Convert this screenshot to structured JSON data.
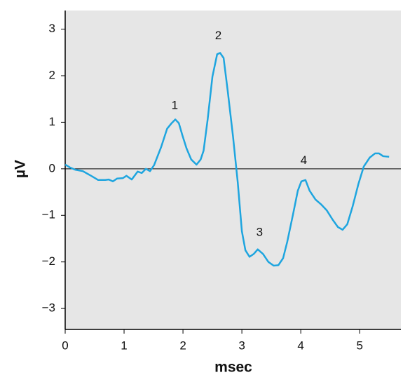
{
  "chart_data": {
    "type": "line",
    "xlabel": "msec",
    "ylabel": "µV",
    "xlim": [
      0,
      5.7
    ],
    "ylim": [
      -3.45,
      3.4
    ],
    "xticks": [
      0,
      1,
      2,
      3,
      4,
      5
    ],
    "yticks": [
      3,
      2,
      1,
      0,
      {
        "value": -1,
        "label": "−1"
      },
      {
        "value": -2,
        "label": "−2"
      },
      {
        "value": -3,
        "label": "−3"
      }
    ],
    "zero_line": true,
    "background": "#e6e6e6",
    "series": [
      {
        "color": "#1ea5df",
        "x": [
          0,
          0.08,
          0.17,
          0.3,
          0.44,
          0.56,
          0.68,
          0.74,
          0.81,
          0.88,
          0.98,
          1.04,
          1.13,
          1.23,
          1.3,
          1.37,
          1.44,
          1.51,
          1.63,
          1.73,
          1.8,
          1.87,
          1.93,
          1.99,
          2.06,
          2.14,
          2.23,
          2.3,
          2.35,
          2.42,
          2.5,
          2.58,
          2.63,
          2.69,
          2.76,
          2.85,
          2.93,
          3.0,
          3.06,
          3.13,
          3.2,
          3.27,
          3.36,
          3.45,
          3.54,
          3.62,
          3.7,
          3.77,
          3.87,
          3.95,
          4.01,
          4.08,
          4.15,
          4.25,
          4.35,
          4.44,
          4.54,
          4.63,
          4.71,
          4.79,
          4.88,
          4.98,
          5.07,
          5.17,
          5.26,
          5.33,
          5.4,
          5.5
        ],
        "values": [
          0.09,
          0.03,
          -0.02,
          -0.05,
          -0.15,
          -0.24,
          -0.24,
          -0.23,
          -0.27,
          -0.21,
          -0.2,
          -0.15,
          -0.23,
          -0.06,
          -0.09,
          0,
          -0.05,
          0.08,
          0.47,
          0.86,
          0.97,
          1.06,
          0.98,
          0.72,
          0.44,
          0.2,
          0.09,
          0.2,
          0.39,
          1.07,
          1.98,
          2.46,
          2.49,
          2.38,
          1.67,
          0.69,
          -0.29,
          -1.34,
          -1.75,
          -1.89,
          -1.83,
          -1.73,
          -1.83,
          -2.0,
          -2.08,
          -2.07,
          -1.92,
          -1.57,
          -0.97,
          -0.47,
          -0.27,
          -0.24,
          -0.47,
          -0.66,
          -0.77,
          -0.89,
          -1.09,
          -1.25,
          -1.31,
          -1.19,
          -0.81,
          -0.32,
          0.05,
          0.24,
          0.33,
          0.33,
          0.27,
          0.26
        ]
      }
    ],
    "annotations": [
      {
        "text": "1",
        "x": 1.86,
        "y": 1.35
      },
      {
        "text": "2",
        "x": 2.6,
        "y": 2.85
      },
      {
        "text": "3",
        "x": 3.3,
        "y": -1.37
      },
      {
        "text": "4",
        "x": 4.05,
        "y": 0.17
      }
    ]
  }
}
